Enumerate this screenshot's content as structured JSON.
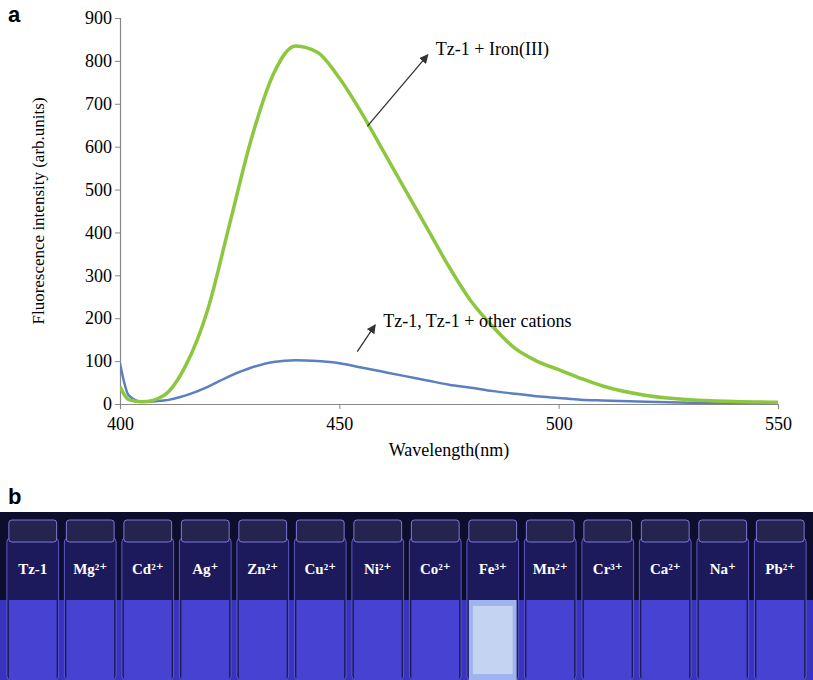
{
  "chart_data": {
    "type": "line",
    "panel": "a",
    "x_label": "Wavelength(nm)",
    "y_label": "Fluorescence intensity  (arb.units)",
    "x": [
      400,
      402,
      405,
      410,
      415,
      420,
      425,
      430,
      435,
      440,
      445,
      450,
      455,
      460,
      465,
      470,
      475,
      480,
      485,
      490,
      495,
      500,
      505,
      510,
      520,
      530,
      540,
      550
    ],
    "series": [
      {
        "name": "Tz-1 + Iron(III)",
        "color": "#8dc63f",
        "values": [
          40,
          10,
          5,
          20,
          90,
          220,
          420,
          620,
          770,
          835,
          820,
          760,
          680,
          590,
          500,
          410,
          320,
          240,
          180,
          130,
          100,
          80,
          60,
          42,
          20,
          10,
          6,
          4
        ]
      },
      {
        "name": "Tz-1, Tz-1 + other cations",
        "color": "#5b7fbf",
        "values": [
          95,
          20,
          5,
          8,
          20,
          40,
          65,
          85,
          98,
          102,
          100,
          95,
          85,
          75,
          65,
          55,
          45,
          38,
          30,
          24,
          18,
          14,
          10,
          8,
          5,
          3,
          2,
          1
        ]
      }
    ],
    "xlim": [
      400,
      550
    ],
    "xticks": [
      400,
      450,
      500,
      550
    ],
    "ylim": [
      0,
      900
    ],
    "yticks": [
      0,
      100,
      200,
      300,
      400,
      500,
      600,
      700,
      800,
      900
    ],
    "grid": false
  },
  "photo": {
    "panel": "b",
    "vials": [
      {
        "label": "Tz-1",
        "glow": false
      },
      {
        "label": "Mg²⁺",
        "glow": false
      },
      {
        "label": "Cd²⁺",
        "glow": false
      },
      {
        "label": "Ag⁺",
        "glow": false
      },
      {
        "label": "Zn²⁺",
        "glow": false
      },
      {
        "label": "Cu²⁺",
        "glow": false
      },
      {
        "label": "Ni²⁺",
        "glow": false
      },
      {
        "label": "Co²⁺",
        "glow": false
      },
      {
        "label": "Fe³⁺",
        "glow": true
      },
      {
        "label": "Mn²⁺",
        "glow": false
      },
      {
        "label": "Cr³⁺",
        "glow": false
      },
      {
        "label": "Ca²⁺",
        "glow": false
      },
      {
        "label": "Na⁺",
        "glow": false
      },
      {
        "label": "Pb²⁺",
        "glow": false
      }
    ]
  }
}
